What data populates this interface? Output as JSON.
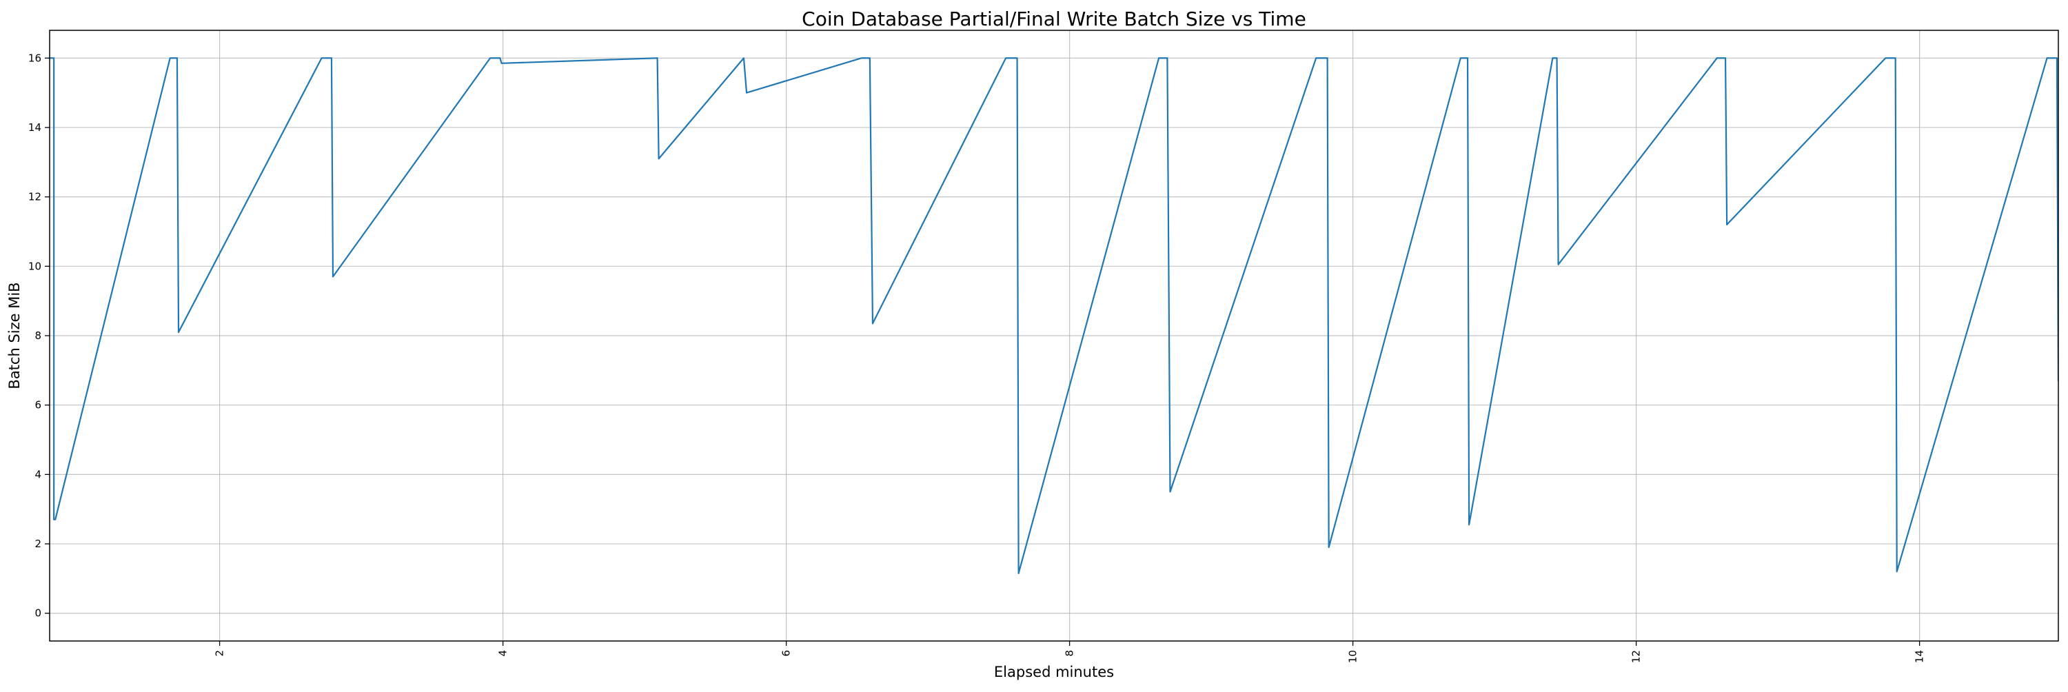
{
  "chart_data": {
    "type": "line",
    "title": "Coin Database Partial/Final Write Batch Size vs Time",
    "xlabel": "Elapsed minutes",
    "ylabel": "Batch Size MiB",
    "xlim": [
      0.8,
      14.98
    ],
    "ylim": [
      -0.8,
      16.8
    ],
    "xticks": [
      2,
      4,
      6,
      8,
      10,
      12,
      14
    ],
    "xtick_labels": [
      "2",
      "4",
      "6",
      "8",
      "10",
      "12",
      "14"
    ],
    "xtick_label_rotation": "vertical",
    "yticks": [
      0,
      2,
      4,
      6,
      8,
      10,
      12,
      14,
      16
    ],
    "ytick_labels": [
      "0",
      "2",
      "4",
      "6",
      "8",
      "10",
      "12",
      "14",
      "16"
    ],
    "grid": true,
    "line_color": "#1f77b4",
    "series": [
      {
        "x": [
          0.8,
          0.83,
          0.83,
          0.84,
          1.65,
          1.7,
          1.71,
          2.72,
          2.79,
          2.8,
          3.91,
          3.98,
          3.99,
          5.09,
          5.1,
          5.7,
          5.72,
          6.53,
          6.59,
          6.61,
          7.55,
          7.63,
          7.64,
          8.63,
          8.69,
          8.71,
          9.74,
          9.82,
          9.83,
          10.76,
          10.81,
          10.82,
          11.41,
          11.44,
          11.45,
          12.57,
          12.63,
          12.64,
          13.76,
          13.83,
          13.84,
          14.9,
          14.97,
          14.98,
          15.2
        ],
        "y": [
          16.0,
          16.0,
          2.7,
          2.7,
          16.0,
          16.0,
          8.1,
          16.0,
          16.0,
          9.7,
          16.0,
          16.0,
          15.85,
          16.0,
          13.1,
          16.0,
          15.0,
          16.0,
          16.0,
          8.35,
          16.0,
          16.0,
          1.15,
          16.0,
          16.0,
          3.5,
          16.0,
          16.0,
          1.9,
          16.0,
          16.0,
          2.55,
          16.0,
          16.0,
          10.05,
          16.0,
          16.0,
          11.2,
          16.0,
          16.0,
          1.2,
          16.0,
          16.0,
          6.7,
          16.5
        ]
      }
    ]
  }
}
